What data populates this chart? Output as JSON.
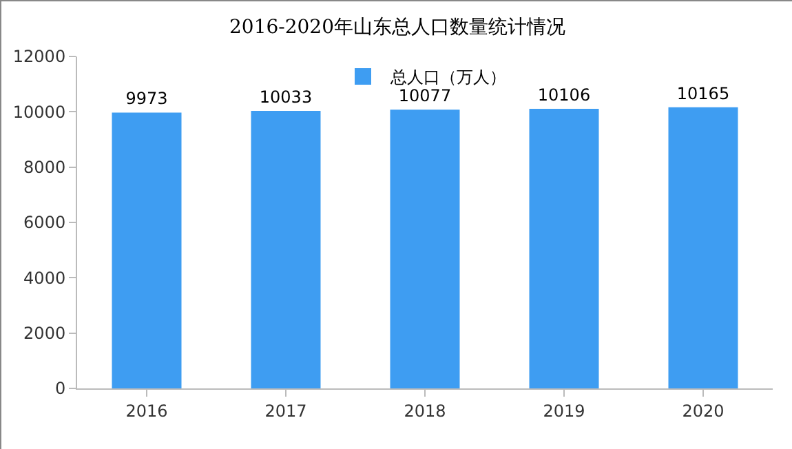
{
  "chart_data": {
    "type": "bar",
    "title": "2016-2020年山东总人口数量统计情况",
    "categories": [
      "2016",
      "2017",
      "2018",
      "2019",
      "2020"
    ],
    "series": [
      {
        "name": "总人口（万人）",
        "color": "#3e9df2",
        "values": [
          9973,
          10033,
          10077,
          10106,
          10165
        ]
      }
    ],
    "ylim": [
      0,
      12000
    ],
    "yticks": [
      0,
      2000,
      4000,
      6000,
      8000,
      10000,
      12000
    ],
    "data_labels": true,
    "legend": "top",
    "grid": false
  }
}
